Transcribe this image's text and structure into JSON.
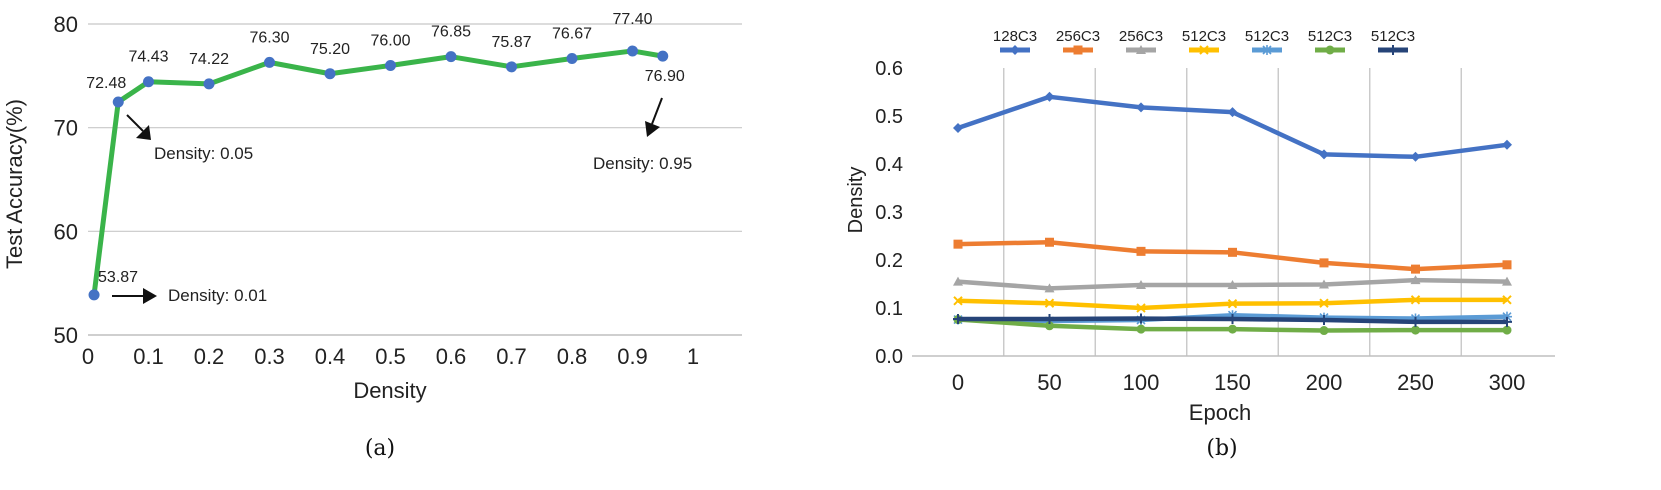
{
  "chart_data": [
    {
      "type": "line",
      "xlabel": "Density",
      "ylabel": "Test Accuracy(%)",
      "caption": "(a)",
      "xlim": [
        0,
        1
      ],
      "ylim": [
        50,
        80
      ],
      "xticks": [
        "0",
        "0.1",
        "0.2",
        "0.3",
        "0.4",
        "0.5",
        "0.6",
        "0.7",
        "0.8",
        "0.9",
        "1"
      ],
      "yticks": [
        "50",
        "60",
        "70",
        "80"
      ],
      "grid": "horizontal",
      "color": "#3ab44a",
      "marker_color": "#4472c4",
      "x": [
        0.01,
        0.05,
        0.1,
        0.2,
        0.3,
        0.4,
        0.5,
        0.6,
        0.7,
        0.8,
        0.9,
        0.95
      ],
      "y": [
        53.87,
        72.48,
        74.43,
        74.22,
        76.3,
        75.2,
        76.0,
        76.85,
        75.87,
        76.67,
        77.4,
        76.9
      ],
      "labels": [
        "53.87",
        "72.48",
        "74.43",
        "74.22",
        "76.30",
        "75.20",
        "76.00",
        "76.85",
        "75.87",
        "76.67",
        "77.40",
        "76.90"
      ],
      "annotations": [
        "Density: 0.01",
        "Density: 0.05",
        "Density: 0.95"
      ]
    },
    {
      "type": "line",
      "xlabel": "Epoch",
      "ylabel": "Density",
      "caption": "(b)",
      "x": [
        0,
        50,
        100,
        150,
        200,
        250,
        300
      ],
      "xticks": [
        "0",
        "50",
        "100",
        "150",
        "200",
        "250",
        "300"
      ],
      "yticks": [
        "0.0",
        "0.1",
        "0.2",
        "0.3",
        "0.4",
        "0.5",
        "0.6"
      ],
      "ylim": [
        0,
        0.6
      ],
      "grid": "vertical",
      "legend": "top",
      "series": [
        {
          "name": "128C3",
          "color": "#4472c4",
          "marker": "diamond",
          "values": [
            0.475,
            0.54,
            0.518,
            0.508,
            0.42,
            0.415,
            0.44
          ]
        },
        {
          "name": "256C3",
          "color": "#ed7d31",
          "marker": "square",
          "values": [
            0.233,
            0.237,
            0.218,
            0.216,
            0.194,
            0.181,
            0.19
          ]
        },
        {
          "name": "256C3",
          "color": "#a5a5a5",
          "marker": "triangle",
          "values": [
            0.155,
            0.141,
            0.148,
            0.148,
            0.149,
            0.158,
            0.155
          ]
        },
        {
          "name": "512C3",
          "color": "#ffc000",
          "marker": "x",
          "values": [
            0.115,
            0.11,
            0.1,
            0.109,
            0.11,
            0.117,
            0.117
          ]
        },
        {
          "name": "512C3",
          "color": "#5b9bd5",
          "marker": "star",
          "values": [
            0.076,
            0.073,
            0.075,
            0.085,
            0.08,
            0.078,
            0.082
          ]
        },
        {
          "name": "512C3",
          "color": "#70ad47",
          "marker": "circle",
          "values": [
            0.076,
            0.063,
            0.056,
            0.056,
            0.053,
            0.054,
            0.054
          ]
        },
        {
          "name": "512C3",
          "color": "#264478",
          "marker": "plus",
          "values": [
            0.077,
            0.077,
            0.078,
            0.077,
            0.075,
            0.071,
            0.071
          ]
        }
      ]
    }
  ]
}
